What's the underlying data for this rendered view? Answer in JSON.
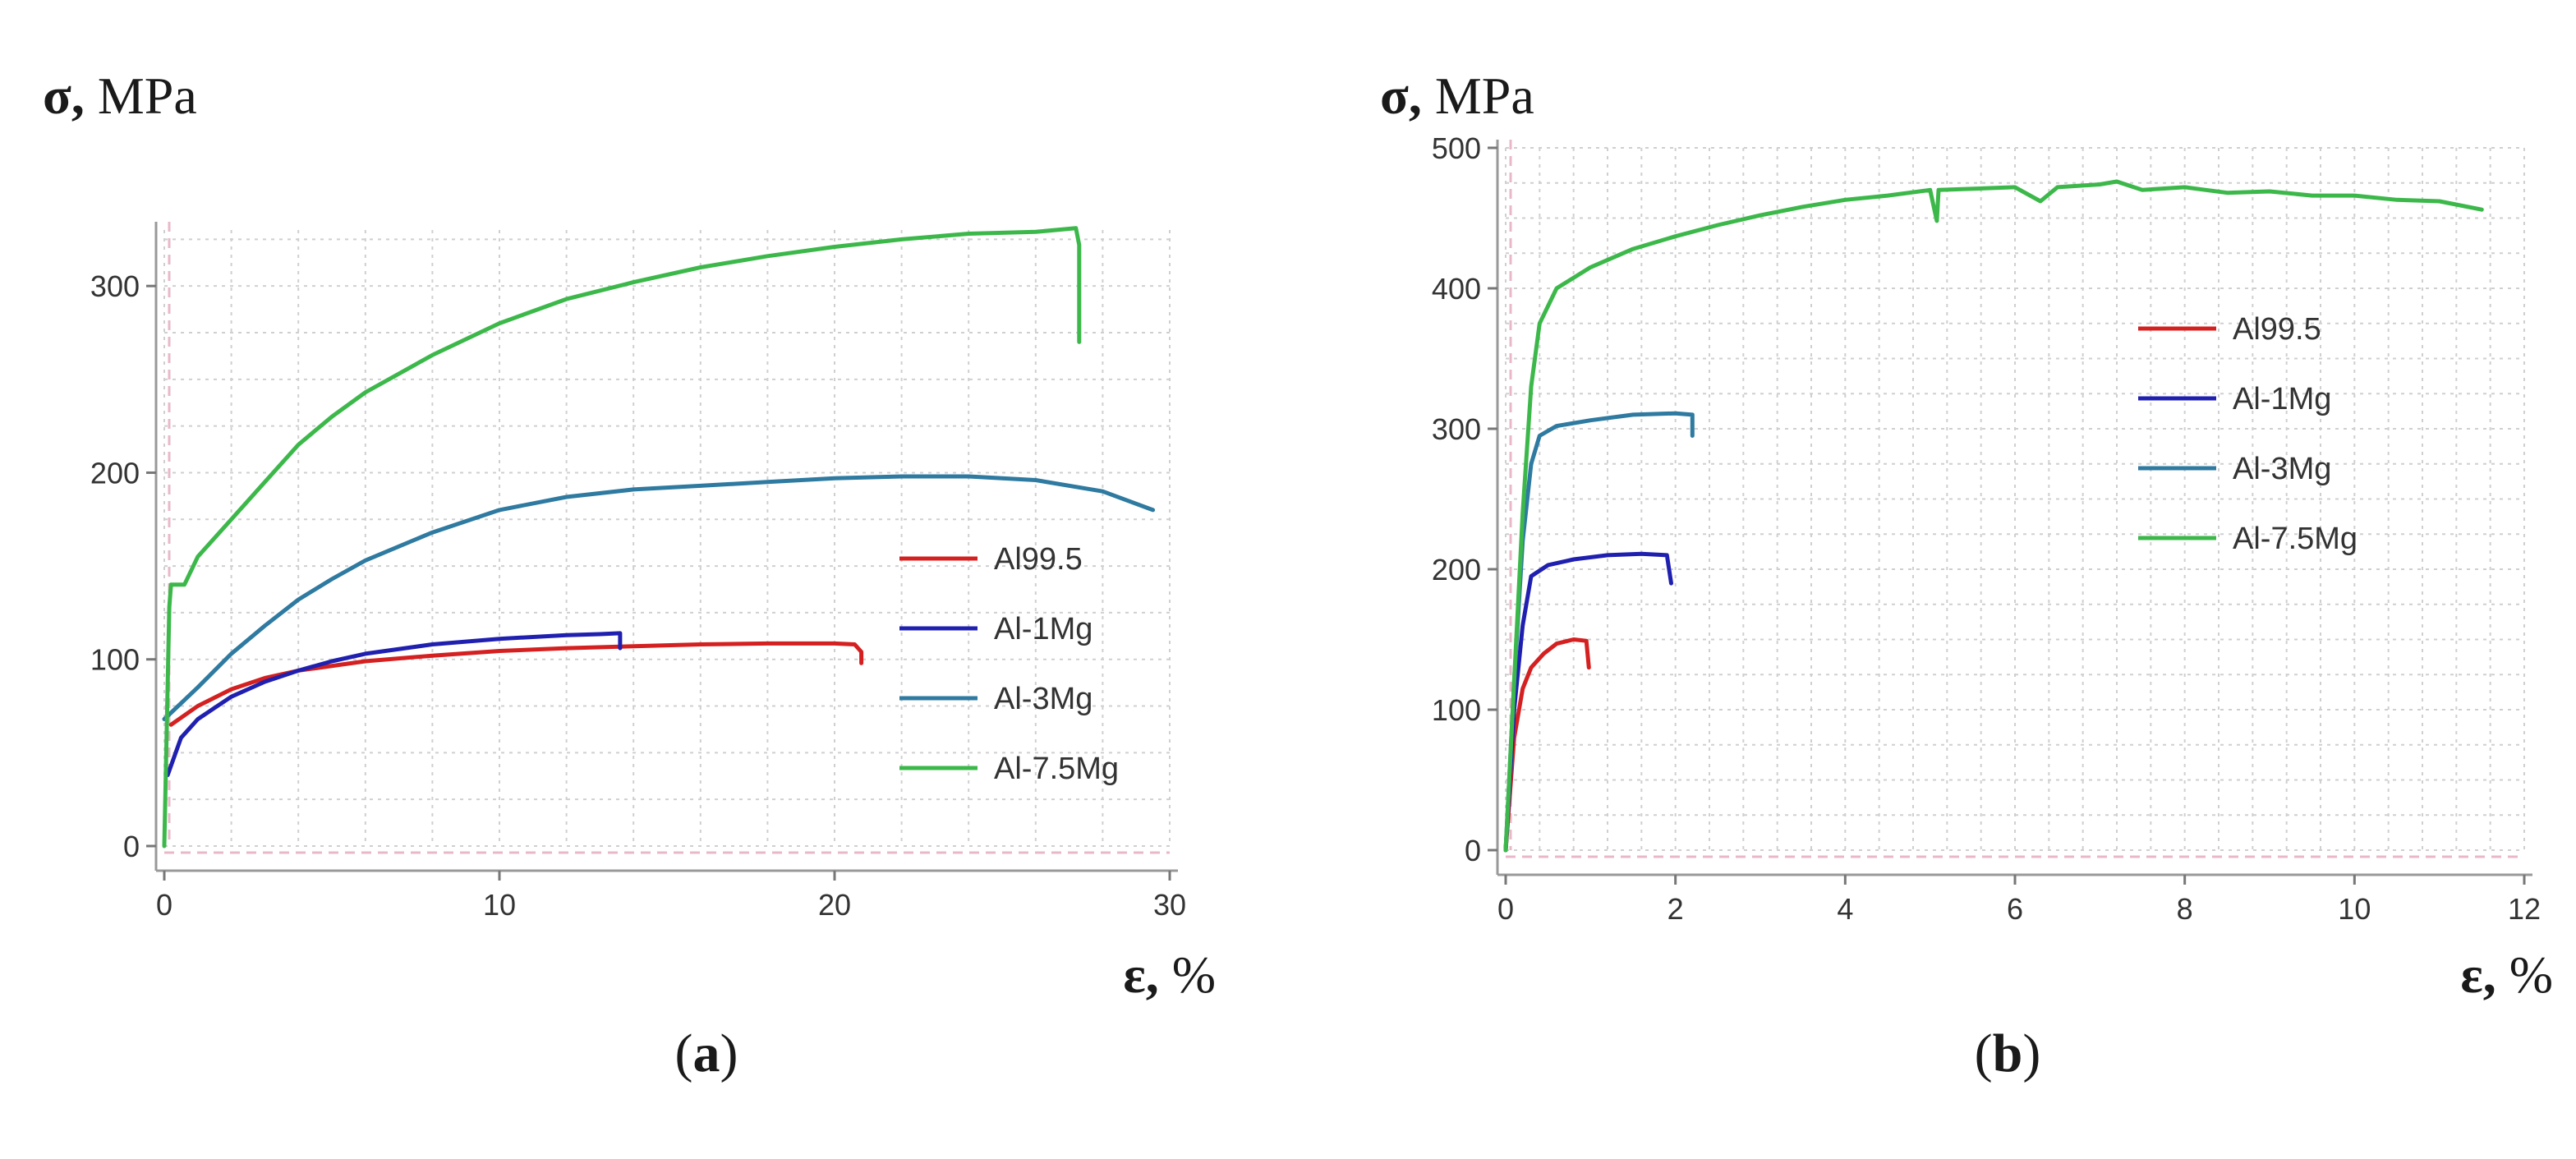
{
  "chart_data": [
    {
      "type": "line",
      "panel_label": "(a)",
      "ylabel": "σ, MPa",
      "xlabel": "ε, %",
      "xlim": [
        0,
        30
      ],
      "ylim": [
        0,
        330
      ],
      "xticks": [
        0,
        10,
        20,
        30
      ],
      "yticks": [
        0,
        100,
        200,
        300
      ],
      "grid": true,
      "legend_position": "lower-right",
      "series": [
        {
          "name": "Al99.5",
          "color": "#d42020",
          "points": [
            [
              0.2,
              65
            ],
            [
              1,
              75
            ],
            [
              2,
              84
            ],
            [
              3,
              90
            ],
            [
              4,
              94
            ],
            [
              6,
              99
            ],
            [
              8,
              102
            ],
            [
              10,
              104.5
            ],
            [
              12,
              106
            ],
            [
              14,
              107
            ],
            [
              16,
              108
            ],
            [
              18,
              108.5
            ],
            [
              20,
              108.5
            ],
            [
              20.6,
              108
            ],
            [
              20.8,
              104
            ],
            [
              20.8,
              98
            ]
          ]
        },
        {
          "name": "Al-1Mg",
          "color": "#2020b0",
          "points": [
            [
              0.1,
              38
            ],
            [
              0.5,
              58
            ],
            [
              1,
              68
            ],
            [
              2,
              80
            ],
            [
              3,
              88
            ],
            [
              4,
              94
            ],
            [
              5,
              99
            ],
            [
              6,
              103
            ],
            [
              8,
              108
            ],
            [
              10,
              111
            ],
            [
              12,
              113
            ],
            [
              13,
              113.5
            ],
            [
              13.6,
              114
            ],
            [
              13.6,
              106
            ]
          ]
        },
        {
          "name": "Al-3Mg",
          "color": "#2e7aa0",
          "points": [
            [
              0,
              68
            ],
            [
              1,
              85
            ],
            [
              2,
              103
            ],
            [
              3,
              118
            ],
            [
              4,
              132
            ],
            [
              5,
              143
            ],
            [
              6,
              153
            ],
            [
              8,
              168
            ],
            [
              10,
              180
            ],
            [
              12,
              187
            ],
            [
              14,
              191
            ],
            [
              16,
              193
            ],
            [
              18,
              195
            ],
            [
              20,
              197
            ],
            [
              22,
              198
            ],
            [
              24,
              198
            ],
            [
              26,
              196
            ],
            [
              28,
              190
            ],
            [
              29.5,
              180
            ]
          ]
        },
        {
          "name": "Al-7.5Mg",
          "color": "#3cb84a",
          "points": [
            [
              0,
              0
            ],
            [
              0.15,
              128
            ],
            [
              0.2,
              140
            ],
            [
              0.6,
              140
            ],
            [
              1,
              155
            ],
            [
              2,
              175
            ],
            [
              3,
              195
            ],
            [
              4,
              215
            ],
            [
              5,
              230
            ],
            [
              6,
              243
            ],
            [
              8,
              263
            ],
            [
              10,
              280
            ],
            [
              12,
              293
            ],
            [
              14,
              302
            ],
            [
              16,
              310
            ],
            [
              18,
              316
            ],
            [
              20,
              321
            ],
            [
              22,
              325
            ],
            [
              24,
              328
            ],
            [
              26,
              329
            ],
            [
              27.2,
              331
            ],
            [
              27.3,
              322
            ],
            [
              27.3,
              270
            ]
          ]
        }
      ],
      "legend_entries": [
        "Al99.5",
        "Al-1Mg",
        "Al-3Mg",
        "Al-7.5Mg"
      ]
    },
    {
      "type": "line",
      "panel_label": "(b)",
      "ylabel": "σ, MPa",
      "xlabel": "ε, %",
      "xlim": [
        0,
        12
      ],
      "ylim": [
        0,
        500
      ],
      "xticks": [
        0,
        2,
        4,
        6,
        8,
        10,
        12
      ],
      "yticks": [
        0,
        100,
        200,
        300,
        400,
        500
      ],
      "grid": true,
      "legend_position": "upper-right",
      "series": [
        {
          "name": "Al99.5",
          "color": "#d42020",
          "points": [
            [
              0,
              0
            ],
            [
              0.1,
              80
            ],
            [
              0.2,
              115
            ],
            [
              0.3,
              130
            ],
            [
              0.45,
              140
            ],
            [
              0.6,
              147
            ],
            [
              0.8,
              150
            ],
            [
              0.95,
              149
            ],
            [
              0.98,
              130
            ]
          ]
        },
        {
          "name": "Al-1Mg",
          "color": "#2020b0",
          "points": [
            [
              0,
              0
            ],
            [
              0.1,
              100
            ],
            [
              0.2,
              160
            ],
            [
              0.3,
              195
            ],
            [
              0.5,
              203
            ],
            [
              0.8,
              207
            ],
            [
              1.2,
              210
            ],
            [
              1.6,
              211
            ],
            [
              1.9,
              210
            ],
            [
              1.95,
              190
            ]
          ]
        },
        {
          "name": "Al-3Mg",
          "color": "#2e7aa0",
          "points": [
            [
              0,
              0
            ],
            [
              0.1,
              120
            ],
            [
              0.2,
              220
            ],
            [
              0.3,
              275
            ],
            [
              0.4,
              295
            ],
            [
              0.6,
              302
            ],
            [
              1,
              306
            ],
            [
              1.5,
              310
            ],
            [
              2,
              311
            ],
            [
              2.2,
              310
            ],
            [
              2.2,
              295
            ]
          ]
        },
        {
          "name": "Al-7.5Mg",
          "color": "#3cb84a",
          "points": [
            [
              0,
              0
            ],
            [
              0.1,
              120
            ],
            [
              0.2,
              240
            ],
            [
              0.3,
              330
            ],
            [
              0.4,
              375
            ],
            [
              0.6,
              400
            ],
            [
              1,
              415
            ],
            [
              1.5,
              428
            ],
            [
              2,
              437
            ],
            [
              2.5,
              445
            ],
            [
              3,
              452
            ],
            [
              3.5,
              458
            ],
            [
              4,
              463
            ],
            [
              4.5,
              466
            ],
            [
              5,
              470
            ],
            [
              5.08,
              448
            ],
            [
              5.1,
              470
            ],
            [
              6,
              472
            ],
            [
              6.3,
              462
            ],
            [
              6.5,
              472
            ],
            [
              7,
              474
            ],
            [
              7.2,
              476
            ],
            [
              7.5,
              470
            ],
            [
              8,
              472
            ],
            [
              8.5,
              468
            ],
            [
              9,
              469
            ],
            [
              9.5,
              466
            ],
            [
              10,
              466
            ],
            [
              10.5,
              463
            ],
            [
              11,
              462
            ],
            [
              11.5,
              456
            ]
          ]
        }
      ],
      "legend_entries": [
        "Al99.5",
        "Al-1Mg",
        "Al-3Mg",
        "Al-7.5Mg"
      ]
    }
  ]
}
